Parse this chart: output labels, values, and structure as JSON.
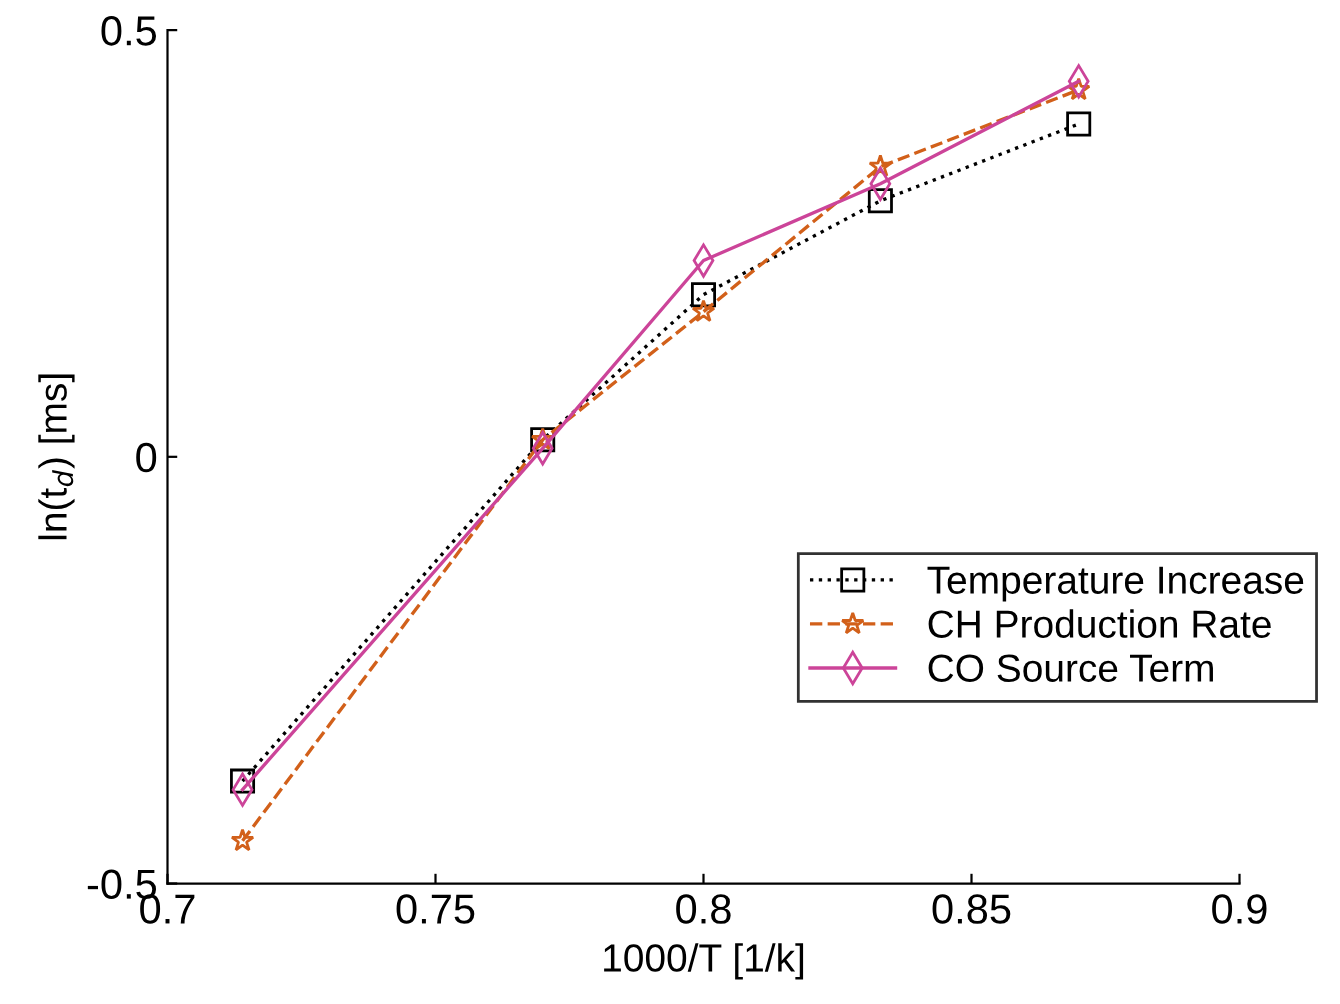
{
  "chart_data": {
    "type": "line",
    "xlabel": "1000/T [1/k]",
    "ylabel": "ln(t$_{d}$) [ms]",
    "x": [
      0.714,
      0.77,
      0.8,
      0.833,
      0.87
    ],
    "series": [
      {
        "name": "Temperature Increase",
        "color": "#000000",
        "marker": "square",
        "line_style": "dotted",
        "values": [
          -0.38,
          0.02,
          0.19,
          0.3,
          0.39
        ]
      },
      {
        "name": "CH Production Rate",
        "color": "#d2601a",
        "marker": "star",
        "line_style": "dashed",
        "values": [
          -0.45,
          0.02,
          0.17,
          0.34,
          0.43
        ]
      },
      {
        "name": "CO Source Term",
        "color": "#cc4499",
        "marker": "diamond",
        "line_style": "solid",
        "values": [
          -0.39,
          0.01,
          0.23,
          0.32,
          0.44
        ]
      }
    ],
    "xlim": [
      0.7,
      0.9
    ],
    "xticks": [
      0.7,
      0.75,
      0.8,
      0.85,
      0.9
    ],
    "ylim": [
      -0.5,
      0.5
    ],
    "yticks": [
      -0.5,
      0,
      0.5
    ],
    "grid": false,
    "legend": "right"
  }
}
